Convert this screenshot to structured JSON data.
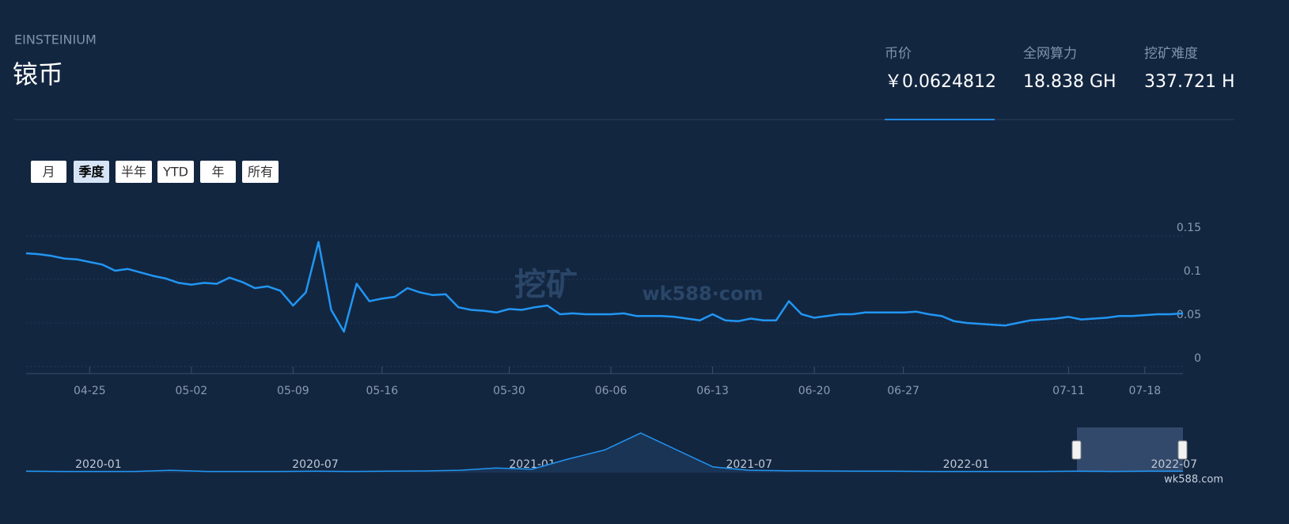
{
  "header": {
    "subtitle": "EINSTEINIUM",
    "title": "锿币"
  },
  "stats": [
    {
      "label": "币价",
      "value": "￥0.0624812"
    },
    {
      "label": "全网算力",
      "value": "18.838 GH"
    },
    {
      "label": "挖矿难度",
      "value": "337.721 H"
    }
  ],
  "buttons": [
    "月",
    "季度",
    "半年",
    "YTD",
    "年",
    "所有"
  ],
  "watermark": {
    "title": "挖矿",
    "site": "wk588·com"
  },
  "credit": "wk588.com",
  "chart_data": [
    {
      "type": "line",
      "color": "#2196f3",
      "grid": true,
      "categories": [
        null,
        null,
        null,
        null,
        null,
        "04-25",
        null,
        null,
        null,
        null,
        null,
        null,
        null,
        "05-02",
        null,
        null,
        null,
        null,
        null,
        null,
        null,
        "05-09",
        null,
        null,
        null,
        null,
        null,
        null,
        "05-16",
        null,
        null,
        null,
        null,
        null,
        null,
        null,
        null,
        null,
        "05-30",
        null,
        null,
        null,
        null,
        null,
        null,
        null,
        "06-06",
        null,
        null,
        null,
        null,
        null,
        null,
        null,
        "06-13",
        null,
        null,
        null,
        null,
        null,
        null,
        null,
        "06-20",
        null,
        null,
        null,
        null,
        null,
        null,
        "06-27",
        null,
        null,
        null,
        null,
        null,
        null,
        null,
        null,
        null,
        null,
        null,
        null,
        "07-11",
        null,
        null,
        null,
        null,
        null,
        "07-18",
        null,
        null,
        null
      ],
      "values": [
        0.13,
        0.129,
        0.127,
        0.124,
        0.123,
        0.12,
        0.117,
        0.11,
        0.112,
        0.108,
        0.104,
        0.101,
        0.096,
        0.094,
        0.096,
        0.095,
        0.102,
        0.097,
        0.09,
        0.092,
        0.087,
        0.07,
        0.085,
        0.143,
        0.065,
        0.04,
        0.095,
        0.075,
        0.078,
        0.08,
        0.09,
        0.085,
        0.082,
        0.083,
        0.068,
        0.065,
        0.064,
        0.062,
        0.066,
        0.065,
        0.068,
        0.07,
        0.06,
        0.061,
        0.06,
        0.06,
        0.06,
        0.061,
        0.058,
        0.058,
        0.058,
        0.057,
        0.055,
        0.053,
        0.06,
        0.053,
        0.052,
        0.055,
        0.053,
        0.053,
        0.075,
        0.06,
        0.056,
        0.058,
        0.06,
        0.06,
        0.062,
        0.062,
        0.062,
        0.062,
        0.063,
        0.06,
        0.058,
        0.052,
        0.05,
        0.049,
        0.048,
        0.047,
        0.05,
        0.053,
        0.054,
        0.055,
        0.057,
        0.054,
        0.055,
        0.056,
        0.058,
        0.058,
        0.059,
        0.06,
        0.06,
        0.061
      ],
      "ylim": [
        0,
        0.2
      ],
      "yticks": [
        0,
        0.05,
        0.1,
        0.15
      ]
    },
    {
      "type": "area",
      "color": "#2196f3",
      "categories": [
        null,
        null,
        "2020-01",
        null,
        null,
        null,
        null,
        null,
        "2020-07",
        null,
        null,
        null,
        null,
        null,
        "2021-01",
        null,
        null,
        null,
        null,
        null,
        "2021-07",
        null,
        null,
        null,
        null,
        null,
        "2022-01",
        null,
        null,
        null,
        null,
        null,
        "2022-07"
      ],
      "values": [
        0.06,
        0.05,
        0.05,
        0.05,
        0.1,
        0.05,
        0.05,
        0.05,
        0.06,
        0.05,
        0.06,
        0.07,
        0.1,
        0.2,
        0.15,
        0.6,
        1.0,
        1.75,
        1.0,
        0.25,
        0.1,
        0.08,
        0.07,
        0.06,
        0.06,
        0.05,
        0.05,
        0.05,
        0.05,
        0.06,
        0.05,
        0.06,
        0.06
      ],
      "ylim": [
        0,
        2
      ]
    }
  ]
}
